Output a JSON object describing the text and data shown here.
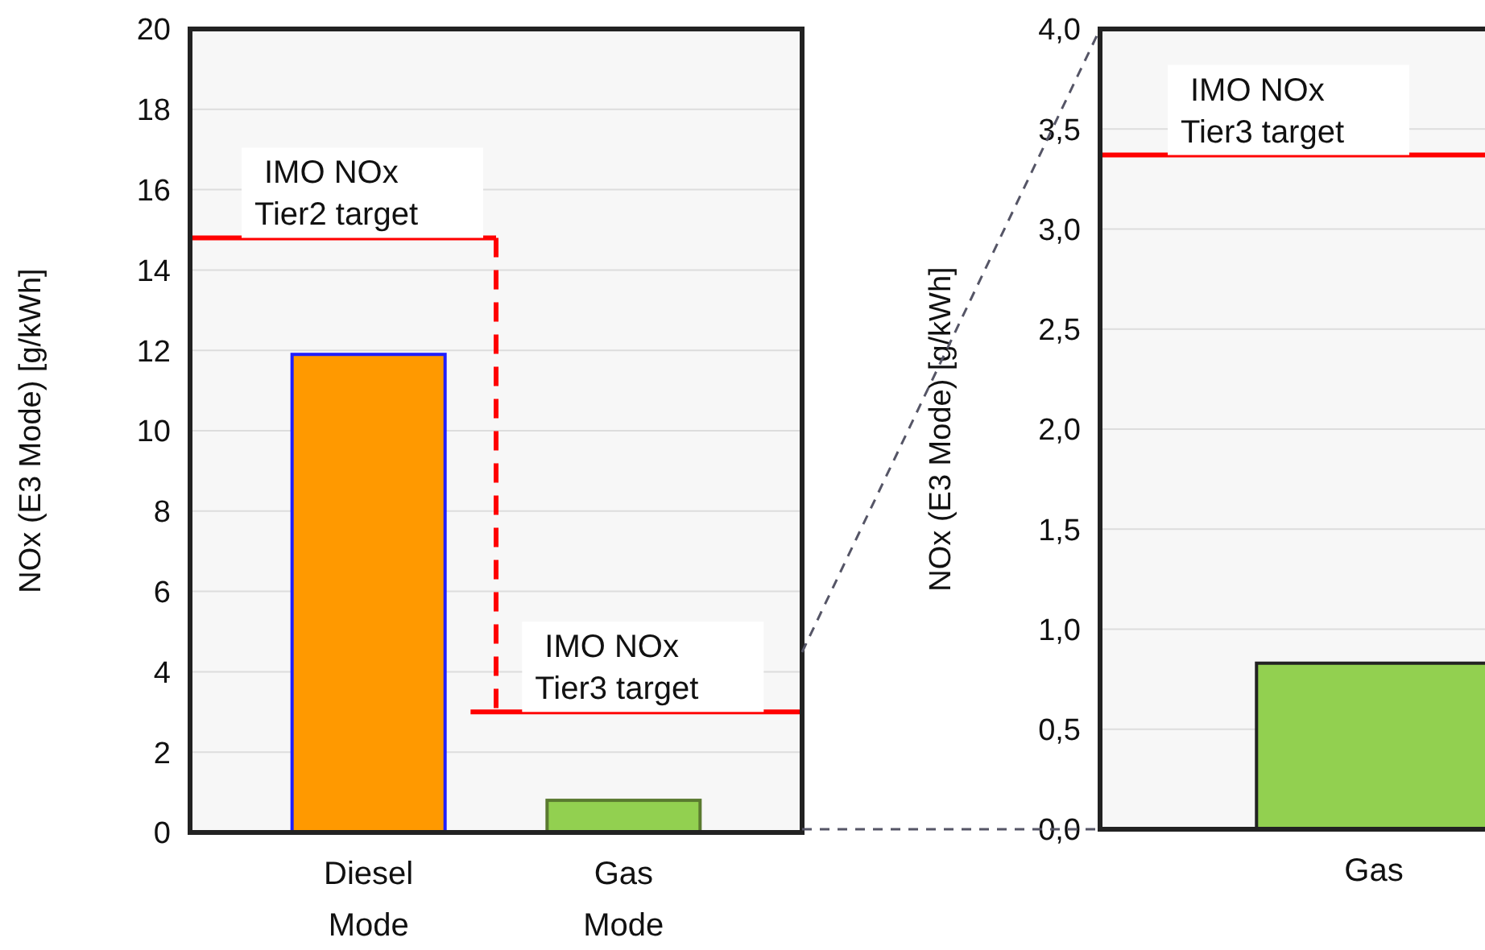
{
  "chart_data": [
    {
      "type": "bar",
      "ylabel": "NOx (E3 Mode)  [g/kWh]",
      "categories": [
        "Diesel\nMode",
        "Gas\nMode"
      ],
      "values": [
        11.9,
        0.8
      ],
      "colors": [
        "#ff9900",
        "#92d050"
      ],
      "ylim": [
        0,
        20
      ],
      "yticks": [
        0,
        2,
        4,
        6,
        8,
        10,
        12,
        14,
        16,
        18,
        20
      ],
      "grid": "y",
      "ref_lines": [
        {
          "axis": "y",
          "value": 14.8,
          "label": "IMO NOx\nTier2 target",
          "color": "#ff0000"
        },
        {
          "axis": "y",
          "value": 3.0,
          "label": "IMO NOx\nTier3 target",
          "color": "#ff0000"
        }
      ]
    },
    {
      "type": "bar",
      "ylabel": "NOx (E3 Mode)  [g/kWh]",
      "categories": [
        "Gas"
      ],
      "values": [
        0.83
      ],
      "colors": [
        "#92d050"
      ],
      "ylim": [
        0,
        4
      ],
      "yticks": [
        {
          "value": 0,
          "label": "0,0"
        },
        {
          "value": 0.5,
          "label": "0,5"
        },
        {
          "value": 1,
          "label": "1,0"
        },
        {
          "value": 1.5,
          "label": "1,5"
        },
        {
          "value": 2,
          "label": "2,0"
        },
        {
          "value": 2.5,
          "label": "2,5"
        },
        {
          "value": 3,
          "label": "3,0"
        },
        {
          "value": 3.5,
          "label": "3,5"
        },
        {
          "value": 4,
          "label": "4,0"
        }
      ],
      "grid": "y",
      "ref_lines": [
        {
          "axis": "y",
          "value": 3.37,
          "label": "IMO NOx\nTier3 target",
          "color": "#ff0000"
        }
      ]
    }
  ]
}
